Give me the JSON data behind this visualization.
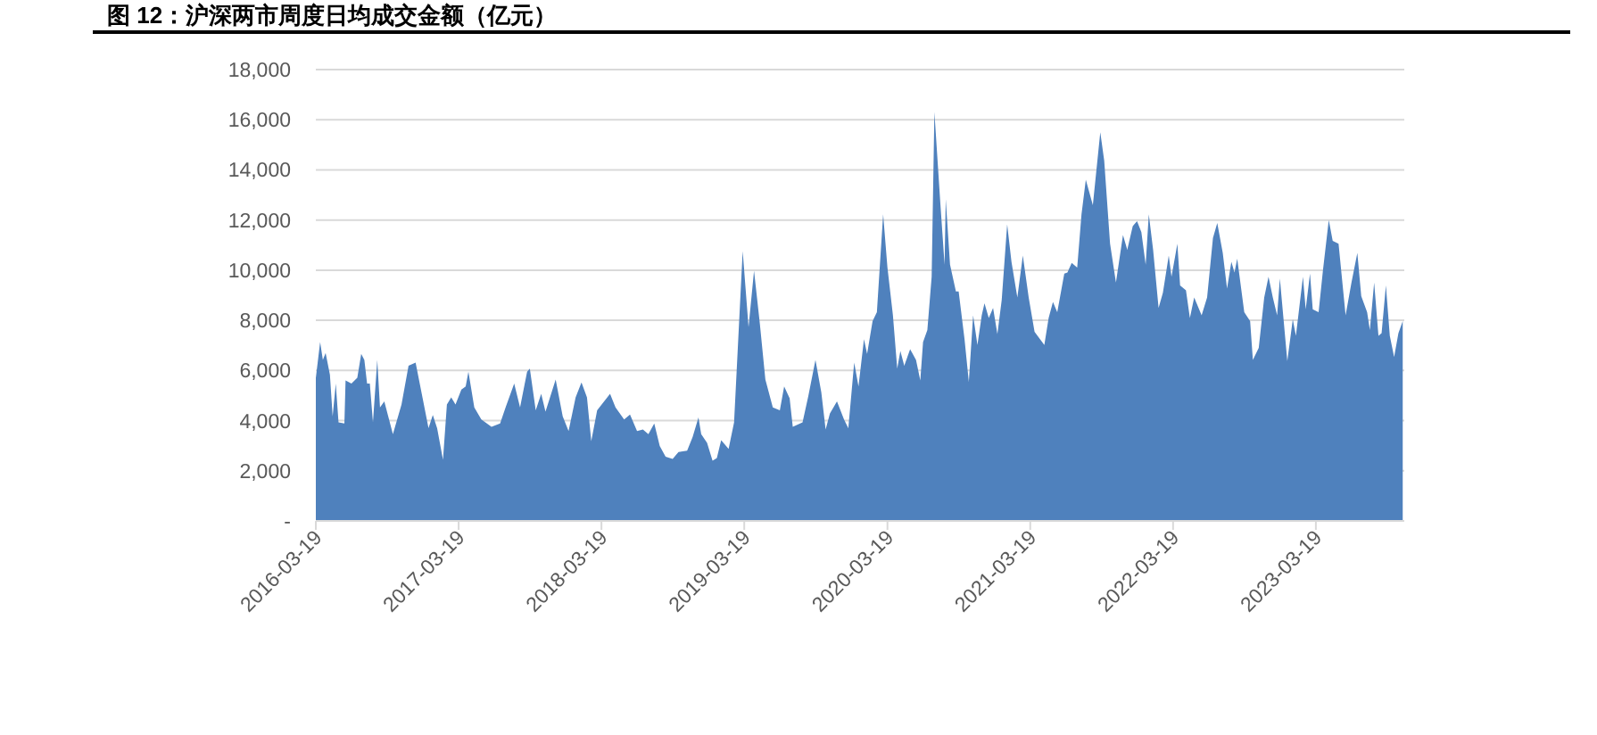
{
  "chart_data": {
    "type": "area",
    "title": "图 12：沪深两市周度日均成交金额（亿元）",
    "series": [
      {
        "color": "#4f81bd",
        "x": [
          "2016-03-19",
          "2016-03-30",
          "2016-04-06",
          "2016-04-13",
          "2016-04-24",
          "2016-05-01",
          "2016-05-09",
          "2016-05-16",
          "2016-05-31",
          "2016-06-03",
          "2016-06-18",
          "2016-07-03",
          "2016-07-13",
          "2016-07-21",
          "2016-07-28",
          "2016-08-04",
          "2016-08-12",
          "2016-08-23",
          "2016-08-30",
          "2016-09-10",
          "2016-10-02",
          "2016-10-24",
          "2016-11-11",
          "2016-11-29",
          "2016-12-17",
          "2017-01-01",
          "2017-01-12",
          "2017-01-23",
          "2017-02-07",
          "2017-02-17",
          "2017-02-28",
          "2017-03-11",
          "2017-03-26",
          "2017-04-06",
          "2017-04-13",
          "2017-04-28",
          "2017-05-16",
          "2017-06-11",
          "2017-07-03",
          "2017-07-17",
          "2017-08-08",
          "2017-08-23",
          "2017-09-10",
          "2017-09-17",
          "2017-10-02",
          "2017-10-16",
          "2017-10-27",
          "2017-11-22",
          "2017-12-10",
          "2017-12-25",
          "2018-01-12",
          "2018-01-27",
          "2018-02-10",
          "2018-02-21",
          "2018-03-08",
          "2018-04-10",
          "2018-04-24",
          "2018-05-16",
          "2018-05-31",
          "2018-06-18",
          "2018-07-03",
          "2018-07-17",
          "2018-08-01",
          "2018-08-15",
          "2018-08-30",
          "2018-09-17",
          "2018-10-02",
          "2018-10-24",
          "2018-11-07",
          "2018-11-22",
          "2018-11-29",
          "2018-12-14",
          "2018-12-28",
          "2019-01-08",
          "2019-01-19",
          "2019-02-07",
          "2019-02-21",
          "2019-03-15",
          "2019-03-30",
          "2019-04-13",
          "2019-04-28",
          "2019-05-12",
          "2019-05-31",
          "2019-06-18",
          "2019-06-29",
          "2019-07-13",
          "2019-07-21",
          "2019-08-15",
          "2019-08-30",
          "2019-09-17",
          "2019-10-02",
          "2019-10-13",
          "2019-10-24",
          "2019-11-11",
          "2019-11-29",
          "2019-12-10",
          "2019-12-25",
          "2020-01-05",
          "2020-01-19",
          "2020-01-27",
          "2020-02-10",
          "2020-02-21",
          "2020-03-08",
          "2020-03-19",
          "2020-04-02",
          "2020-04-13",
          "2020-04-21",
          "2020-05-01",
          "2020-05-16",
          "2020-05-31",
          "2020-06-11",
          "2020-06-18",
          "2020-06-29",
          "2020-07-10",
          "2020-07-17",
          "2020-08-01",
          "2020-08-12",
          "2020-08-15",
          "2020-08-26",
          "2020-09-10",
          "2020-09-17",
          "2020-10-02",
          "2020-10-13",
          "2020-10-24",
          "2020-11-04",
          "2020-11-15",
          "2020-11-22",
          "2020-12-03",
          "2020-12-14",
          "2020-12-25",
          "2021-01-05",
          "2021-01-19",
          "2021-01-30",
          "2021-02-14",
          "2021-02-28",
          "2021-03-15",
          "2021-03-30",
          "2021-04-24",
          "2021-05-05",
          "2021-05-16",
          "2021-05-27",
          "2021-06-14",
          "2021-06-22",
          "2021-07-03",
          "2021-07-17",
          "2021-07-28",
          "2021-08-08",
          "2021-08-26",
          "2021-09-14",
          "2021-09-24",
          "2021-10-09",
          "2021-10-24",
          "2021-11-11",
          "2021-11-22",
          "2021-12-06",
          "2021-12-17",
          "2021-12-28",
          "2022-01-08",
          "2022-01-16",
          "2022-01-27",
          "2022-02-10",
          "2022-02-21",
          "2022-03-08",
          "2022-03-15",
          "2022-03-30",
          "2022-04-06",
          "2022-04-21",
          "2022-05-01",
          "2022-05-12",
          "2022-05-31",
          "2022-06-14",
          "2022-06-29",
          "2022-07-10",
          "2022-07-24",
          "2022-08-04",
          "2022-08-15",
          "2022-08-23",
          "2022-08-30",
          "2022-09-17",
          "2022-10-02",
          "2022-10-09",
          "2022-10-24",
          "2022-11-07",
          "2022-11-18",
          "2022-11-29",
          "2022-12-10",
          "2022-12-17",
          "2023-01-05",
          "2023-01-19",
          "2023-01-27",
          "2023-02-14",
          "2023-02-21",
          "2023-03-04",
          "2023-03-11",
          "2023-03-26",
          "2023-04-06",
          "2023-04-21",
          "2023-05-01",
          "2023-05-16",
          "2023-06-03",
          "2023-06-18",
          "2023-07-03",
          "2023-07-13",
          "2023-07-28",
          "2023-08-04",
          "2023-08-15",
          "2023-08-26",
          "2023-09-03",
          "2023-09-14",
          "2023-09-24",
          "2023-10-05",
          "2023-10-16",
          "2023-10-27"
        ],
        "values": [
          5700,
          7130,
          6420,
          6700,
          5830,
          4170,
          5480,
          3930,
          3890,
          5600,
          5480,
          5710,
          6660,
          6420,
          5480,
          5480,
          3930,
          6420,
          4530,
          4770,
          3460,
          4640,
          6190,
          6310,
          4890,
          3700,
          4220,
          3700,
          2440,
          4640,
          4930,
          4640,
          5240,
          5360,
          5950,
          4530,
          4050,
          3750,
          3890,
          4530,
          5480,
          4530,
          5950,
          6070,
          4410,
          5070,
          4360,
          5640,
          4170,
          3580,
          4930,
          5520,
          4930,
          3180,
          4410,
          5070,
          4530,
          4050,
          4240,
          3580,
          3650,
          3460,
          3890,
          2990,
          2560,
          2470,
          2750,
          2800,
          3340,
          4130,
          3460,
          3110,
          2400,
          2510,
          3220,
          2870,
          3930,
          10760,
          7730,
          9980,
          7840,
          5640,
          4530,
          4410,
          5360,
          4890,
          3750,
          3930,
          5000,
          6420,
          5120,
          3650,
          4290,
          4770,
          4050,
          3700,
          6310,
          5360,
          7250,
          6660,
          7970,
          8320,
          12230,
          10100,
          8200,
          6070,
          6780,
          6190,
          6850,
          6420,
          5600,
          7130,
          7610,
          9740,
          16310,
          12710,
          10220,
          12830,
          10220,
          9150,
          9150,
          7250,
          5550,
          8200,
          7020,
          8200,
          8680,
          8090,
          8490,
          7450,
          8800,
          11830,
          10330,
          8910,
          10580,
          8910,
          7540,
          7020,
          8090,
          8730,
          8320,
          9860,
          9910,
          10290,
          10100,
          12230,
          13610,
          12590,
          15500,
          14370,
          11050,
          9510,
          11400,
          10810,
          11760,
          11950,
          11520,
          10220,
          12230,
          10810,
          8490,
          9100,
          10580,
          9740,
          11050,
          9390,
          9200,
          8090,
          8910,
          8200,
          8910,
          11290,
          11880,
          10690,
          9270,
          10330,
          9910,
          10460,
          8320,
          7970,
          6420,
          6900,
          8910,
          9740,
          8910,
          8200,
          9670,
          6380,
          8040,
          7380,
          9740,
          8440,
          9860,
          8440,
          8320,
          9980,
          12000,
          11170,
          11050,
          8200,
          9510,
          10690,
          8960,
          8320,
          7610,
          9510,
          7380,
          7490,
          9390,
          7380,
          6540,
          7490,
          7970
        ]
      }
    ],
    "xlim": [
      "2016-03-19",
      "2023-10-31"
    ],
    "xticks": [
      "2016-03-19",
      "2017-03-19",
      "2018-03-19",
      "2019-03-19",
      "2020-03-19",
      "2021-03-19",
      "2022-03-19",
      "2023-03-19"
    ],
    "ylim": [
      0,
      18000
    ],
    "yticks": [
      {
        "value": 0,
        "label": "-"
      },
      {
        "value": 2000,
        "label": "2,000"
      },
      {
        "value": 4000,
        "label": "4,000"
      },
      {
        "value": 6000,
        "label": "6,000"
      },
      {
        "value": 8000,
        "label": "8,000"
      },
      {
        "value": 10000,
        "label": "10,000"
      },
      {
        "value": 12000,
        "label": "12,000"
      },
      {
        "value": 14000,
        "label": "14,000"
      },
      {
        "value": 16000,
        "label": "16,000"
      },
      {
        "value": 18000,
        "label": "18,000"
      }
    ],
    "grid": "y"
  }
}
